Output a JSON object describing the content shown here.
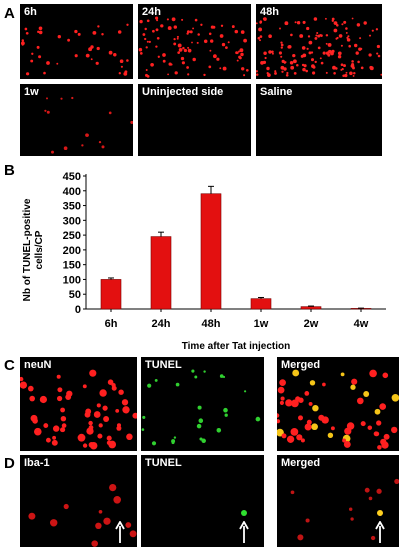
{
  "panel_letters": {
    "a": "A",
    "b": "B",
    "c": "C",
    "d": "D"
  },
  "panel_a": {
    "tiles": [
      {
        "label": "6h"
      },
      {
        "label": "24h"
      },
      {
        "label": "48h"
      },
      {
        "label": "1w"
      },
      {
        "label": "Uninjected side"
      },
      {
        "label": "Saline"
      }
    ]
  },
  "panel_c": {
    "labels": [
      "neuN",
      "TUNEL",
      "Merged"
    ]
  },
  "panel_d": {
    "labels": [
      "Iba-1",
      "TUNEL",
      "Merged"
    ]
  },
  "chart_data": {
    "type": "bar",
    "categories": [
      "6h",
      "24h",
      "48h",
      "1w",
      "2w",
      "4w"
    ],
    "values": [
      100,
      245,
      390,
      35,
      8,
      2
    ],
    "errors": [
      5,
      15,
      25,
      4,
      2,
      1
    ],
    "ylim": [
      0,
      450
    ],
    "yticks": [
      0,
      50,
      100,
      150,
      200,
      250,
      300,
      350,
      400,
      450
    ],
    "ylabel_line1": "Nb of TUNEL-positive",
    "ylabel_line2": "cells/CP",
    "xlabel": "Time after Tat injection",
    "grid": false,
    "bar_color": "#e31010"
  }
}
